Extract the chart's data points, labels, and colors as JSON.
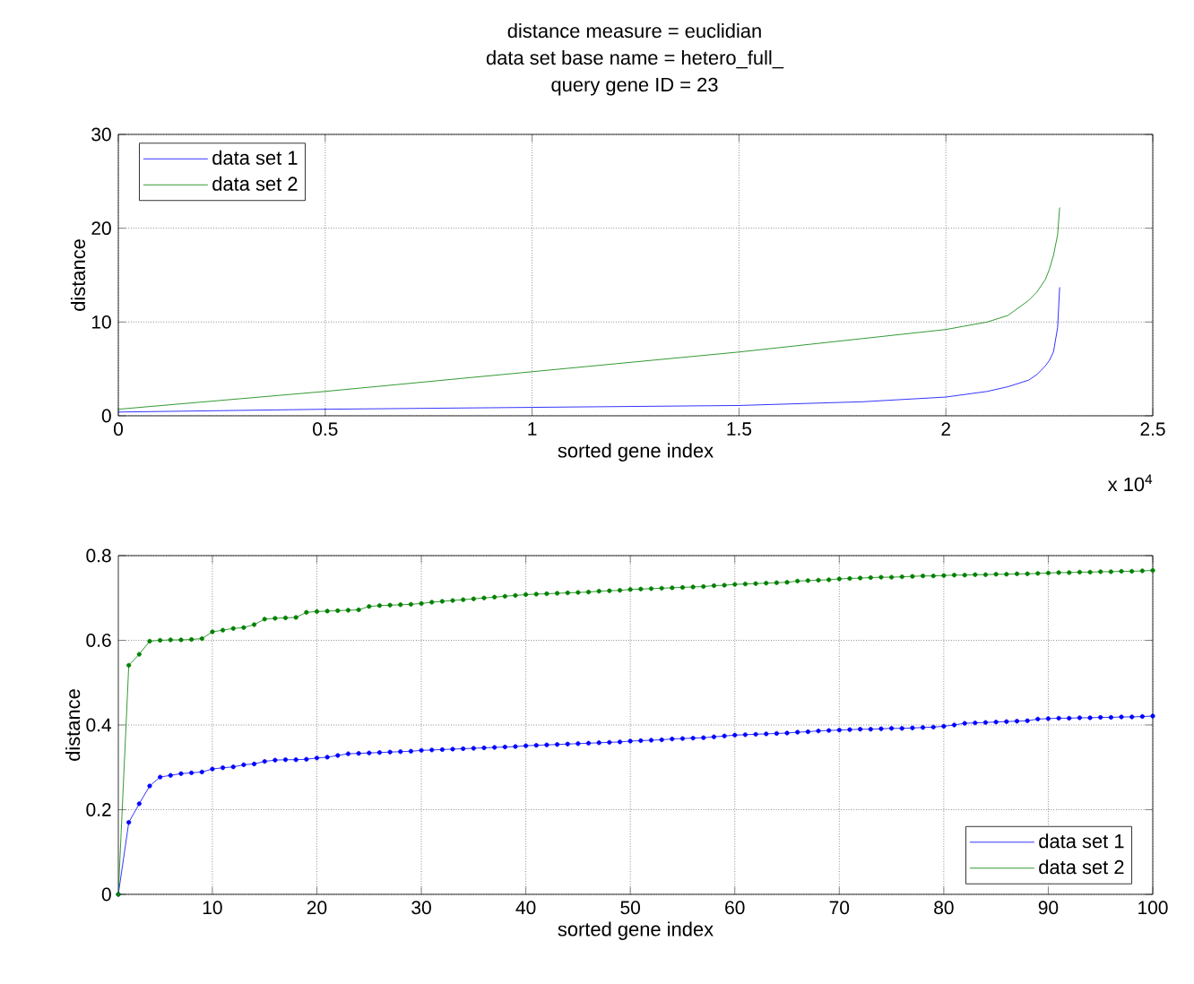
{
  "chart_data": [
    {
      "type": "line",
      "title": "distance measure = euclidian",
      "subtitle": "data set base name = hetero_full_",
      "xlabel": "sorted gene index",
      "ylabel": "distance",
      "annotations": [
        "query gene ID = 23",
        "x 10$^{4}$"
      ],
      "xlim": [
        0,
        2.5
      ],
      "xticks": [
        0,
        0.5,
        1,
        1.5,
        2,
        2.5
      ],
      "ylim": [
        0,
        30
      ],
      "yticks": [
        0,
        10,
        20,
        30
      ],
      "grid": true,
      "legend": "top left",
      "series": [
        {
          "name": "data set 1",
          "color": "#0000ff",
          "x": [
            0,
            0.5,
            1,
            1.5,
            1.8,
            2,
            2.1,
            2.15,
            2.2,
            2.22,
            2.24,
            2.25,
            2.26,
            2.27,
            2.275
          ],
          "values": [
            0.4,
            0.7,
            0.9,
            1.1,
            1.5,
            2.0,
            2.6,
            3.1,
            3.8,
            4.4,
            5.3,
            5.9,
            6.8,
            9.4,
            13.7
          ]
        },
        {
          "name": "data set 2",
          "color": "#008000",
          "x": [
            0,
            0.5,
            1,
            1.5,
            2,
            2.1,
            2.15,
            2.2,
            2.22,
            2.24,
            2.25,
            2.26,
            2.27,
            2.275
          ],
          "values": [
            0.7,
            2.6,
            4.7,
            6.8,
            9.2,
            10.0,
            10.7,
            12.3,
            13.2,
            14.5,
            15.6,
            17.1,
            19.3,
            22.2
          ]
        }
      ]
    },
    {
      "type": "line",
      "xlabel": "sorted gene index",
      "ylabel": "distance",
      "xlim": [
        1,
        100
      ],
      "xticks": [
        10,
        20,
        30,
        40,
        50,
        60,
        70,
        80,
        90,
        100
      ],
      "ylim": [
        0,
        0.8
      ],
      "yticks": [
        0,
        0.2,
        0.4,
        0.6,
        0.8
      ],
      "grid": true,
      "legend": "bottom right",
      "marker": "circle",
      "x": [
        1,
        2,
        3,
        4,
        5,
        6,
        7,
        8,
        9,
        10,
        11,
        12,
        13,
        14,
        15,
        16,
        17,
        18,
        19,
        20,
        21,
        22,
        23,
        24,
        25,
        26,
        27,
        28,
        29,
        30,
        31,
        32,
        33,
        34,
        35,
        36,
        37,
        38,
        39,
        40,
        41,
        42,
        43,
        44,
        45,
        46,
        47,
        48,
        49,
        50,
        51,
        52,
        53,
        54,
        55,
        56,
        57,
        58,
        59,
        60,
        61,
        62,
        63,
        64,
        65,
        66,
        67,
        68,
        69,
        70,
        71,
        72,
        73,
        74,
        75,
        76,
        77,
        78,
        79,
        80,
        81,
        82,
        83,
        84,
        85,
        86,
        87,
        88,
        89,
        90,
        91,
        92,
        93,
        94,
        95,
        96,
        97,
        98,
        99,
        100
      ],
      "series": [
        {
          "name": "data set 1",
          "color": "#0000ff",
          "values": [
            0,
            0.17,
            0.214,
            0.256,
            0.277,
            0.281,
            0.285,
            0.287,
            0.289,
            0.296,
            0.299,
            0.301,
            0.306,
            0.308,
            0.314,
            0.317,
            0.318,
            0.318,
            0.319,
            0.322,
            0.324,
            0.328,
            0.332,
            0.333,
            0.334,
            0.335,
            0.336,
            0.337,
            0.338,
            0.34,
            0.341,
            0.342,
            0.343,
            0.344,
            0.345,
            0.346,
            0.347,
            0.348,
            0.349,
            0.351,
            0.352,
            0.353,
            0.354,
            0.355,
            0.356,
            0.357,
            0.358,
            0.359,
            0.36,
            0.362,
            0.363,
            0.364,
            0.365,
            0.367,
            0.368,
            0.369,
            0.37,
            0.372,
            0.374,
            0.376,
            0.377,
            0.378,
            0.379,
            0.38,
            0.381,
            0.383,
            0.384,
            0.386,
            0.387,
            0.388,
            0.389,
            0.39,
            0.39,
            0.391,
            0.392,
            0.392,
            0.393,
            0.394,
            0.395,
            0.397,
            0.4,
            0.404,
            0.405,
            0.406,
            0.407,
            0.408,
            0.409,
            0.41,
            0.414,
            0.415,
            0.416,
            0.416,
            0.417,
            0.417,
            0.418,
            0.418,
            0.419,
            0.419,
            0.42,
            0.421
          ]
        },
        {
          "name": "data set 2",
          "color": "#008000",
          "values": [
            0,
            0.541,
            0.567,
            0.598,
            0.6,
            0.601,
            0.601,
            0.602,
            0.604,
            0.62,
            0.624,
            0.628,
            0.63,
            0.637,
            0.65,
            0.652,
            0.653,
            0.654,
            0.666,
            0.668,
            0.669,
            0.67,
            0.671,
            0.672,
            0.68,
            0.682,
            0.683,
            0.684,
            0.685,
            0.687,
            0.69,
            0.692,
            0.694,
            0.696,
            0.698,
            0.7,
            0.702,
            0.704,
            0.706,
            0.708,
            0.709,
            0.71,
            0.711,
            0.712,
            0.713,
            0.714,
            0.716,
            0.717,
            0.718,
            0.72,
            0.721,
            0.722,
            0.723,
            0.724,
            0.725,
            0.726,
            0.727,
            0.729,
            0.73,
            0.732,
            0.733,
            0.734,
            0.735,
            0.736,
            0.737,
            0.74,
            0.741,
            0.742,
            0.743,
            0.745,
            0.746,
            0.747,
            0.748,
            0.749,
            0.749,
            0.75,
            0.751,
            0.752,
            0.752,
            0.753,
            0.754,
            0.754,
            0.755,
            0.755,
            0.756,
            0.756,
            0.757,
            0.757,
            0.758,
            0.759,
            0.76,
            0.76,
            0.761,
            0.761,
            0.762,
            0.762,
            0.763,
            0.763,
            0.764,
            0.765
          ]
        }
      ]
    }
  ]
}
